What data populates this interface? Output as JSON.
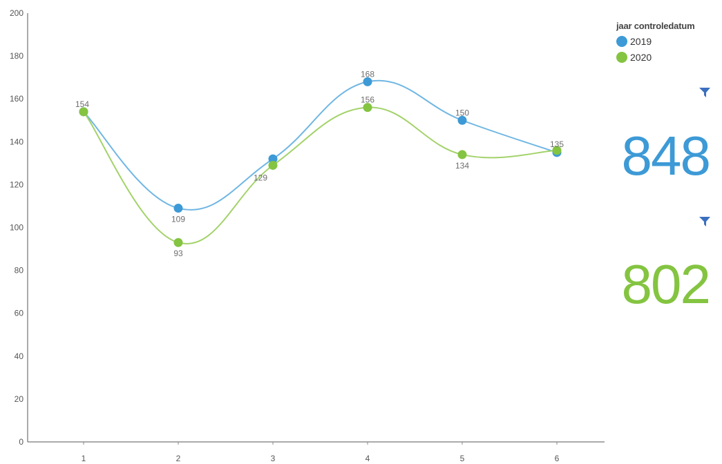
{
  "chart_data": {
    "type": "line",
    "title": "",
    "xlabel": "",
    "ylabel": "",
    "x": [
      "1",
      "2",
      "3",
      "4",
      "5",
      "6"
    ],
    "ylim": [
      0,
      200
    ],
    "yticks": [
      "0",
      "20",
      "40",
      "60",
      "80",
      "100",
      "120",
      "140",
      "160",
      "180",
      "200"
    ],
    "grid": false,
    "smooth": true,
    "legend": {
      "title": "jaar controledatum",
      "placement": "top-right"
    },
    "series": [
      {
        "name": "2019",
        "color": "#3d9ad6",
        "line_color": "#6fb6e3",
        "values": [
          154,
          109,
          132,
          168,
          150,
          135
        ],
        "labels": [
          "154",
          "109",
          "",
          "168",
          "150",
          "135"
        ]
      },
      {
        "name": "2020",
        "color": "#84c441",
        "line_color": "#a3d26a",
        "values": [
          154,
          93,
          129,
          156,
          134,
          136
        ],
        "labels": [
          "",
          "93",
          "129",
          "156",
          "134",
          ""
        ]
      }
    ]
  },
  "kpis": [
    {
      "value": "848",
      "color": "#3d9ad6",
      "icon": "filter-icon"
    },
    {
      "value": "802",
      "color": "#84c441",
      "icon": "filter-icon"
    }
  ],
  "filter_icon_color": "#3b6fc0"
}
